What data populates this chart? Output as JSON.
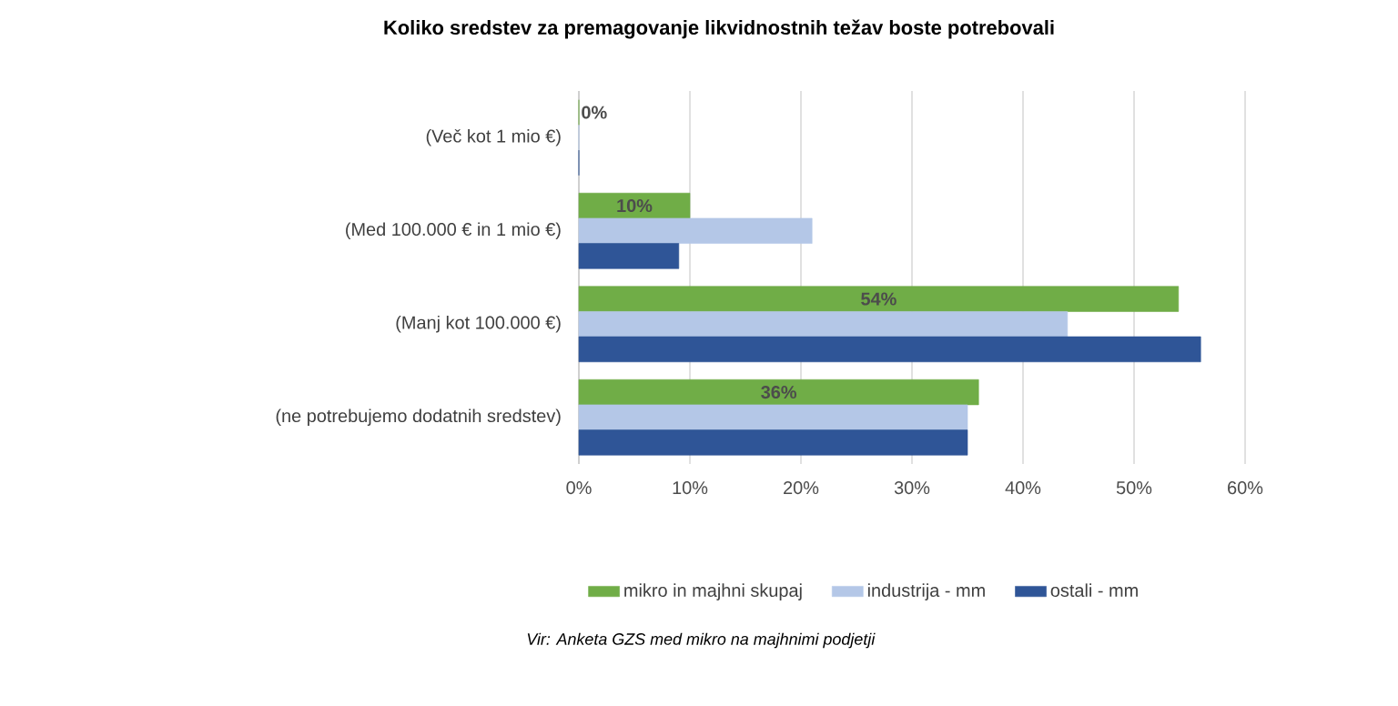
{
  "chart_data": {
    "type": "bar",
    "orientation": "horizontal",
    "title": "Koliko sredstev za premagovanje  likvidnostnih  težav boste potrebovali",
    "categories": [
      "(Več kot 1 mio €)",
      "(Med 100.000 € in 1 mio €)",
      "(Manj kot 100.000 €)",
      "(ne potrebujemo dodatnih sredstev)"
    ],
    "series": [
      {
        "name": "mikro in majhni skupaj",
        "color": "#70ad47",
        "values": [
          0,
          10,
          54,
          36
        ],
        "value_labels": [
          "0%",
          "10%",
          "54%",
          "36%"
        ]
      },
      {
        "name": "industrija - mm",
        "color": "#b4c7e7",
        "values": [
          0,
          21,
          44,
          35
        ]
      },
      {
        "name": "ostali - mm",
        "color": "#2f5597",
        "values": [
          0,
          9,
          56,
          35
        ]
      }
    ],
    "xlim": [
      0,
      60
    ],
    "xticks": [
      {
        "value": 0,
        "label": "0%"
      },
      {
        "value": 10,
        "label": "10%"
      },
      {
        "value": 20,
        "label": "20%"
      },
      {
        "value": 30,
        "label": "30%"
      },
      {
        "value": 40,
        "label": "40%"
      },
      {
        "value": 50,
        "label": "50%"
      },
      {
        "value": 60,
        "label": "60%"
      }
    ],
    "grid": "x",
    "legend": "bottom",
    "annotations": [
      "*Vir: Anketa GZS med mikro na majhnimi podjetji*"
    ]
  }
}
